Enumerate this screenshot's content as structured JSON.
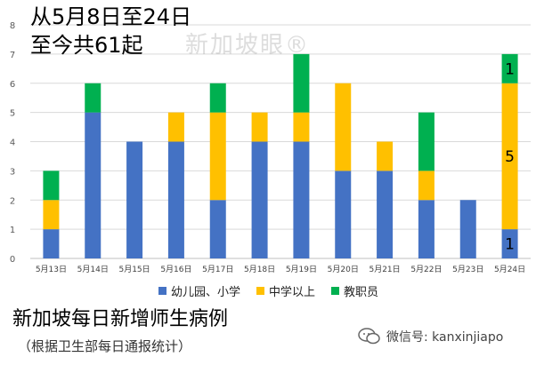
{
  "header": {
    "line1": "从5月8日至24日",
    "line2": "至今共61起"
  },
  "watermark": "新加坡眼®",
  "footer": {
    "title": "新加坡每日新增师生病例",
    "subtitle": "（根据卫生部每日通报统计）",
    "wechat": "微信号: kanxinjiapo"
  },
  "colors": {
    "primary": "#4472c4",
    "secondary": "#ffc000",
    "staff": "#00b050",
    "grid": "#d9d9d9",
    "axis": "#bfbfbf"
  },
  "chart_data": {
    "type": "bar",
    "stacked": true,
    "categories": [
      "5月13日",
      "5月14日",
      "5月15日",
      "5月16日",
      "5月17日",
      "5月18日",
      "5月19日",
      "5月20日",
      "5月21日",
      "5月22日",
      "5月23日",
      "5月24日"
    ],
    "series": [
      {
        "name": "幼儿园、小学",
        "color": "#4472c4",
        "values": [
          1,
          5,
          4,
          4,
          2,
          4,
          4,
          3,
          3,
          2,
          2,
          1
        ]
      },
      {
        "name": "中学以上",
        "color": "#ffc000",
        "values": [
          1,
          0,
          0,
          1,
          3,
          1,
          1,
          3,
          1,
          1,
          0,
          5
        ]
      },
      {
        "name": "教职员",
        "color": "#00b050",
        "values": [
          1,
          1,
          0,
          0,
          1,
          0,
          2,
          0,
          0,
          2,
          0,
          1
        ]
      }
    ],
    "ylim": [
      0,
      8
    ],
    "yticks": [
      0,
      1,
      2,
      3,
      4,
      5,
      6,
      7,
      8
    ],
    "grid": true,
    "legend_position": "bottom",
    "data_labels": [
      {
        "category": "5月24日",
        "series": "幼儿园、小学",
        "text": "1"
      },
      {
        "category": "5月24日",
        "series": "中学以上",
        "text": "5"
      },
      {
        "category": "5月24日",
        "series": "教职员",
        "text": "1"
      }
    ]
  }
}
